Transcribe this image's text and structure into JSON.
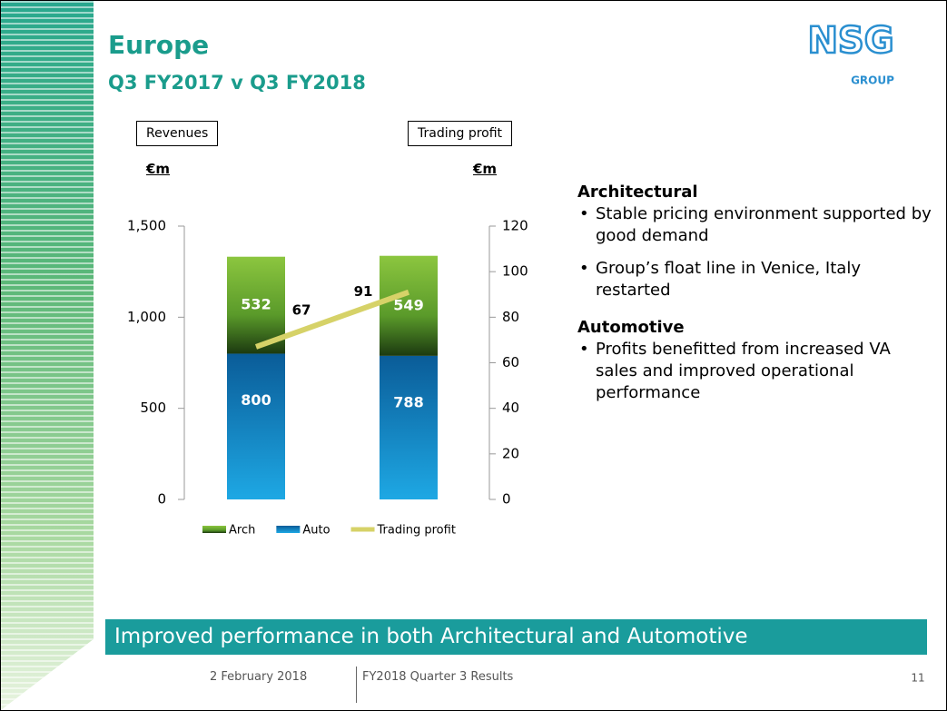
{
  "title": "Europe",
  "subtitle": "Q3 FY2017 v Q3 FY2018",
  "logo": {
    "name": "NSG",
    "sub": "GROUP"
  },
  "chart_data": {
    "type": "bar",
    "stacked": true,
    "categories": [
      "Q3\nFY2017",
      "Q3\nFY2018"
    ],
    "y_label": "Revenues",
    "y_unit": "€m",
    "y2_label": "Trading profit",
    "y2_unit": "€m",
    "series": [
      {
        "name": "Arch",
        "color": "#8cc63f",
        "values": [
          532,
          549
        ]
      },
      {
        "name": "Auto",
        "color": "#0a6fb0",
        "values": [
          800,
          788
        ]
      },
      {
        "name": "Trading profit",
        "color": "#d6d268",
        "values": [
          67,
          91
        ],
        "axis": "y2",
        "type": "line"
      }
    ],
    "ylim": [
      0,
      1500
    ],
    "yticks": [
      0,
      500,
      {
        "value": 1000,
        "label": "1,000"
      },
      {
        "value": 1500,
        "label": "1,500"
      }
    ],
    "y2lim": [
      0,
      120
    ],
    "y2ticks": [
      0,
      20,
      40,
      60,
      80,
      100,
      120
    ],
    "legend": "bottom"
  },
  "sections": [
    {
      "heading": "Architectural",
      "bullets": [
        "Stable pricing environment supported by good demand",
        "Group’s float line in Venice, Italy restarted"
      ]
    },
    {
      "heading": "Automotive",
      "bullets": [
        "Profits benefitted from increased VA sales and improved operational performance"
      ]
    }
  ],
  "banner": "Improved performance in both Architectural and Automotive",
  "footer": {
    "date": "2 February 2018",
    "event": "FY2018 Quarter 3 Results",
    "page": "11"
  }
}
